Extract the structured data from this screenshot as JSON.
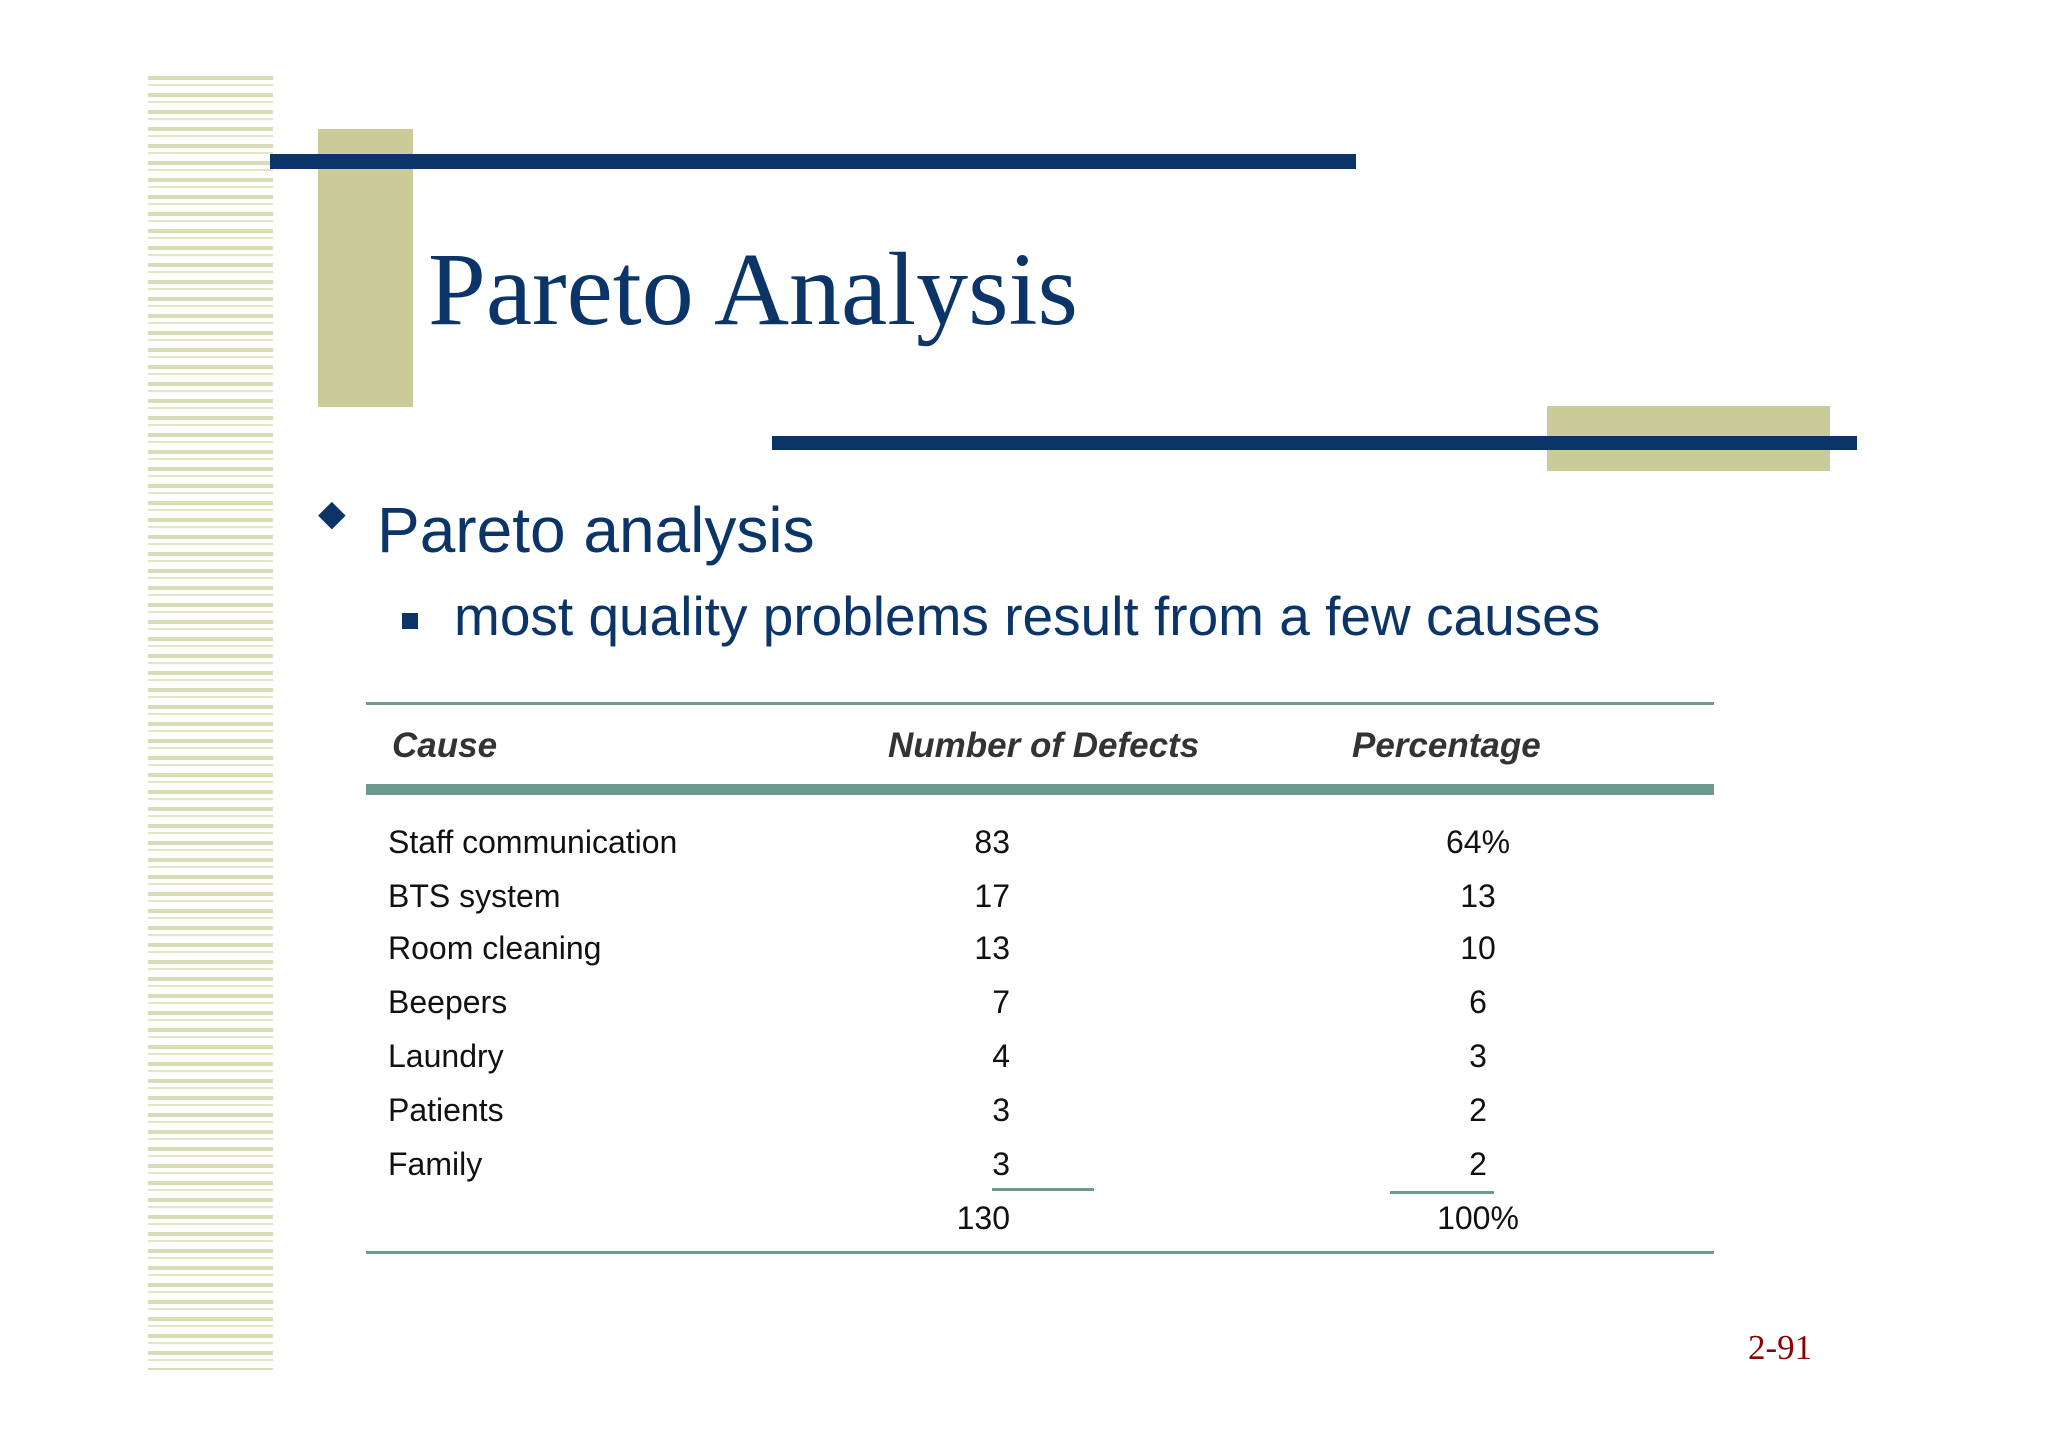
{
  "slide": {
    "title": "Pareto Analysis",
    "bullets": [
      {
        "text": "Pareto analysis",
        "sub": [
          "most quality problems result from a few causes"
        ]
      }
    ],
    "slide_number": "2-91"
  },
  "table": {
    "headers": [
      "Cause",
      "Number of Defects",
      "Percentage"
    ],
    "rows": [
      {
        "cause": "Staff communication",
        "defects": "83",
        "percentage": "64%"
      },
      {
        "cause": "BTS system",
        "defects": "17",
        "percentage": "13"
      },
      {
        "cause": "Room cleaning",
        "defects": "13",
        "percentage": "10"
      },
      {
        "cause": "Beepers",
        "defects": "7",
        "percentage": "6"
      },
      {
        "cause": "Laundry",
        "defects": "4",
        "percentage": "3"
      },
      {
        "cause": "Patients",
        "defects": "3",
        "percentage": "2"
      },
      {
        "cause": "Family",
        "defects": "3",
        "percentage": "2"
      }
    ],
    "total": {
      "defects": "130",
      "percentage": "100%"
    }
  },
  "colors": {
    "navy": "#0b3568",
    "khaki": "#cbcb99",
    "table_rule": "#6b9a8e",
    "slide_number": "#8b0000"
  }
}
